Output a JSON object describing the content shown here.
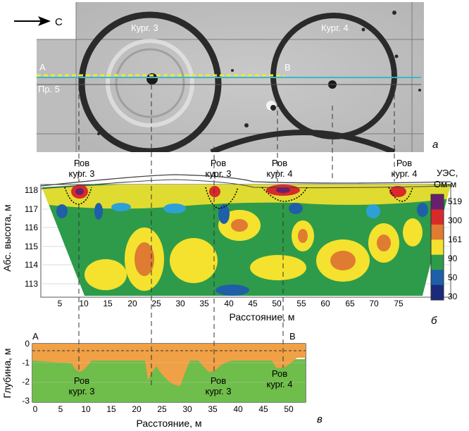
{
  "panel_a": {
    "letter": "а",
    "north_arrow_label": "С",
    "kurgan3_label": "Кург. 3",
    "kurgan4_label": "Кург. 4",
    "point_a": "А",
    "point_b": "В",
    "profile_label": "Пр. 5"
  },
  "panel_b": {
    "letter": "б",
    "ylabel": "Абс. высота, м",
    "xlabel": "Расстояние, м",
    "x_ticks": [
      "5",
      "10",
      "15",
      "20",
      "25",
      "30",
      "35",
      "40",
      "45",
      "50",
      "55",
      "60",
      "65",
      "70",
      "75"
    ],
    "y_ticks": [
      "113",
      "114",
      "115",
      "116",
      "117",
      "118"
    ],
    "ditch_labels": [
      {
        "line1": "Ров",
        "line2": "кург. 3"
      },
      {
        "line1": "Ров",
        "line2": "кург. 3"
      },
      {
        "line1": "Ров",
        "line2": "кург. 4"
      },
      {
        "line1": "Ров",
        "line2": "кург. 4"
      }
    ],
    "legend": {
      "title_line1": "УЭС,",
      "title_line2": "Ом·м",
      "values": [
        "519",
        "300",
        "161",
        "90",
        "50",
        "30"
      ],
      "colors": [
        "#6a1f6e",
        "#d92a2a",
        "#e07b32",
        "#f4e22e",
        "#2e9b4a",
        "#1f5fa8",
        "#1b2a7a"
      ]
    }
  },
  "panel_v": {
    "letter": "в",
    "point_a": "А",
    "point_b": "В",
    "ylabel": "Глубина, м",
    "xlabel": "Расстояние, м",
    "x_ticks": [
      "0",
      "5",
      "10",
      "15",
      "20",
      "25",
      "30",
      "35",
      "40",
      "45",
      "50"
    ],
    "y_ticks": [
      "0",
      "-1",
      "-2",
      "-3"
    ],
    "ditch_labels": [
      {
        "line1": "Ров",
        "line2": "кург. 3"
      },
      {
        "line1": "Ров",
        "line2": "кург. 3"
      },
      {
        "line1": "Ров",
        "line2": "кург. 4"
      }
    ],
    "colors": {
      "upper": "#f0a045",
      "lower": "#6fbd4a"
    }
  }
}
